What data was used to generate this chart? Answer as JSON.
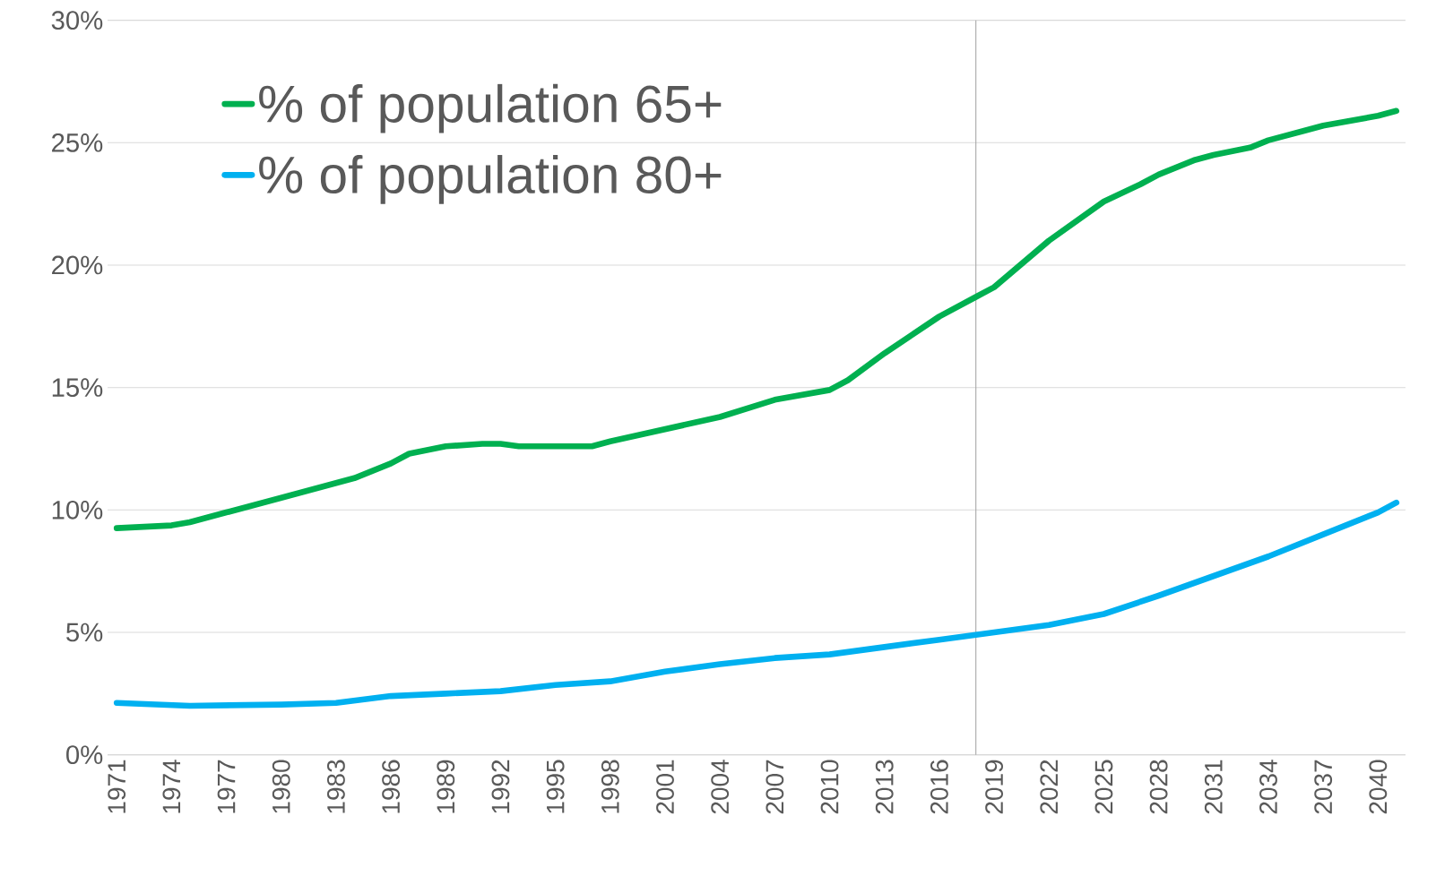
{
  "chart_data": {
    "type": "line",
    "xlim": [
      1970.5,
      2041.5
    ],
    "xticks": [
      1971,
      1974,
      1977,
      1980,
      1983,
      1986,
      1989,
      1992,
      1995,
      1998,
      2001,
      2004,
      2007,
      2010,
      2013,
      2016,
      2019,
      2022,
      2025,
      2028,
      2031,
      2034,
      2037,
      2040
    ],
    "ylim": [
      0,
      30
    ],
    "yticks": [
      {
        "value": 0,
        "label": "0%"
      },
      {
        "value": 5,
        "label": "5%"
      },
      {
        "value": 10,
        "label": "10%"
      },
      {
        "value": 15,
        "label": "15%"
      },
      {
        "value": 20,
        "label": "20%"
      },
      {
        "value": 25,
        "label": "25%"
      },
      {
        "value": 30,
        "label": "30%"
      }
    ],
    "grid": "y",
    "legend": "top left",
    "marker": "none",
    "line_style": "solid",
    "ref_lines": [
      {
        "axis": "x",
        "value": 2018,
        "color": "#a6a6a6"
      }
    ],
    "series": [
      {
        "name": "% of population 65+",
        "color": "#00b050",
        "x": [
          1971,
          1974,
          1975,
          1977,
          1980,
          1981,
          1983,
          1984,
          1986,
          1987,
          1989,
          1991,
          1992,
          1993,
          1995,
          1997,
          1998,
          2001,
          2004,
          2007,
          2010,
          2011,
          2013,
          2016,
          2018,
          2019,
          2022,
          2025,
          2027,
          2028,
          2030,
          2031,
          2033,
          2034,
          2036,
          2037,
          2040,
          2041
        ],
        "values": [
          9.26,
          9.37,
          9.5,
          9.9,
          10.5,
          10.7,
          11.1,
          11.3,
          11.9,
          12.3,
          12.6,
          12.7,
          12.7,
          12.6,
          12.6,
          12.6,
          12.8,
          13.3,
          13.8,
          14.5,
          14.9,
          15.3,
          16.4,
          17.9,
          18.7,
          19.1,
          21.0,
          22.6,
          23.3,
          23.7,
          24.3,
          24.5,
          24.8,
          25.1,
          25.5,
          25.7,
          26.1,
          26.3
        ]
      },
      {
        "name": "% of population 80+",
        "color": "#00b0f0",
        "x": [
          1971,
          1975,
          1980,
          1983,
          1986,
          1989,
          1992,
          1995,
          1998,
          2001,
          2004,
          2007,
          2010,
          2013,
          2016,
          2019,
          2022,
          2025,
          2026,
          2028,
          2031,
          2034,
          2037,
          2040,
          2041
        ],
        "values": [
          2.12,
          2.0,
          2.05,
          2.12,
          2.4,
          2.5,
          2.6,
          2.85,
          3.0,
          3.4,
          3.7,
          3.95,
          4.1,
          4.4,
          4.7,
          5.0,
          5.3,
          5.75,
          6.0,
          6.5,
          7.3,
          8.1,
          9.0,
          9.9,
          10.3
        ]
      }
    ]
  }
}
